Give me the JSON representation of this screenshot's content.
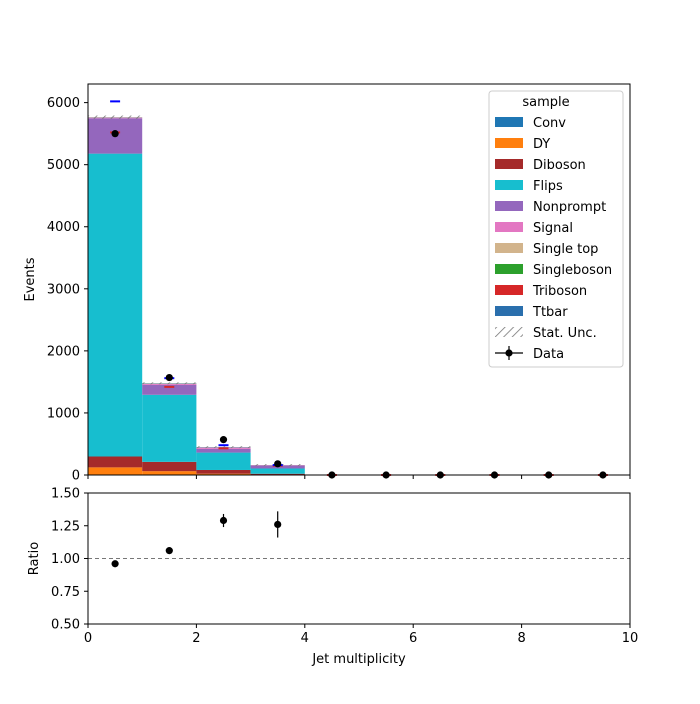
{
  "chart_data": [
    {
      "panel": "main",
      "type": "bar",
      "stacked": true,
      "xlabel": "",
      "ylabel": "Events",
      "xlim": [
        0,
        10
      ],
      "ylim": [
        0,
        6300
      ],
      "yticks": [
        0,
        1000,
        2000,
        3000,
        4000,
        5000,
        6000
      ],
      "xticks": [
        0,
        2,
        4,
        6,
        8,
        10
      ],
      "bin_edges": [
        0,
        1,
        2,
        3,
        4,
        5,
        6,
        7,
        8,
        9,
        10
      ],
      "legend": {
        "title": "sample",
        "placement": "top-right"
      },
      "series": [
        {
          "name": "Conv",
          "color": "#1f77b4",
          "values": [
            3,
            2,
            1,
            0,
            0,
            0,
            0,
            0,
            0,
            0
          ]
        },
        {
          "name": "DY",
          "color": "#ff7f0e",
          "values": [
            120,
            60,
            20,
            5,
            0,
            0,
            0,
            0,
            0,
            0
          ]
        },
        {
          "name": "Diboson",
          "color": "#a52a2a",
          "values": [
            175,
            150,
            60,
            15,
            0,
            0,
            0,
            0,
            0,
            0
          ]
        },
        {
          "name": "Flips",
          "color": "#17becf",
          "values": [
            4880,
            1080,
            280,
            85,
            0,
            0,
            0,
            0,
            0,
            0
          ]
        },
        {
          "name": "Nonprompt",
          "color": "#9467bd",
          "values": [
            570,
            160,
            60,
            40,
            0,
            0,
            0,
            0,
            0,
            0
          ]
        },
        {
          "name": "Signal",
          "color": "#e377c2",
          "values": [
            10,
            15,
            20,
            10,
            0,
            0,
            0,
            0,
            0,
            0
          ]
        },
        {
          "name": "Single top",
          "color": "#d2b48c",
          "values": [
            2,
            3,
            2,
            1,
            0,
            0,
            0,
            0,
            0,
            0
          ]
        },
        {
          "name": "Singleboson",
          "color": "#2ca02c",
          "values": [
            2,
            2,
            1,
            0,
            0,
            0,
            0,
            0,
            0,
            0
          ]
        },
        {
          "name": "Triboson",
          "color": "#d62728",
          "values": [
            1,
            1,
            1,
            1,
            0,
            0,
            0,
            0,
            0,
            0
          ]
        },
        {
          "name": "Ttbar",
          "color": "#2a6fad",
          "values": [
            2,
            5,
            5,
            4,
            0,
            0,
            0,
            0,
            0,
            0
          ]
        }
      ],
      "stat_unc_label": "Stat. Unc.",
      "data": {
        "name": "Data",
        "x": [
          0.5,
          1.5,
          2.5,
          3.5,
          4.5,
          5.5,
          6.5,
          7.5,
          8.5,
          9.5
        ],
        "y": [
          5500,
          1570,
          570,
          180,
          0,
          0,
          0,
          0,
          0,
          0
        ]
      },
      "blue_markers": {
        "color": "#0000ff",
        "x": [
          0.5,
          1.5,
          2.5,
          3.5
        ],
        "y": [
          6020,
          1560,
          480,
          160
        ]
      },
      "red_markers": {
        "color": "#d62728",
        "x": [
          0.5,
          1.5,
          2.5,
          3.5,
          4.5,
          5.5,
          6.5,
          7.5,
          8.5,
          9.5
        ],
        "y": [
          5520,
          1420,
          430,
          150,
          0,
          0,
          0,
          0,
          0,
          0
        ]
      }
    },
    {
      "panel": "ratio",
      "type": "scatter",
      "xlabel": "Jet multiplicity",
      "ylabel": "Ratio",
      "xlim": [
        0,
        10
      ],
      "ylim": [
        0.5,
        1.5
      ],
      "yticks": [
        "0.50",
        "0.75",
        "1.00",
        "1.25",
        "1.50"
      ],
      "ytick_values": [
        0.5,
        0.75,
        1.0,
        1.25,
        1.5
      ],
      "xticks": [
        0,
        2,
        4,
        6,
        8,
        10
      ],
      "reference_line": 1.0,
      "x": [
        0.5,
        1.5,
        2.5,
        3.5
      ],
      "y": [
        0.96,
        1.06,
        1.29,
        1.26
      ],
      "err": [
        0.015,
        0.02,
        0.05,
        0.1
      ]
    }
  ]
}
